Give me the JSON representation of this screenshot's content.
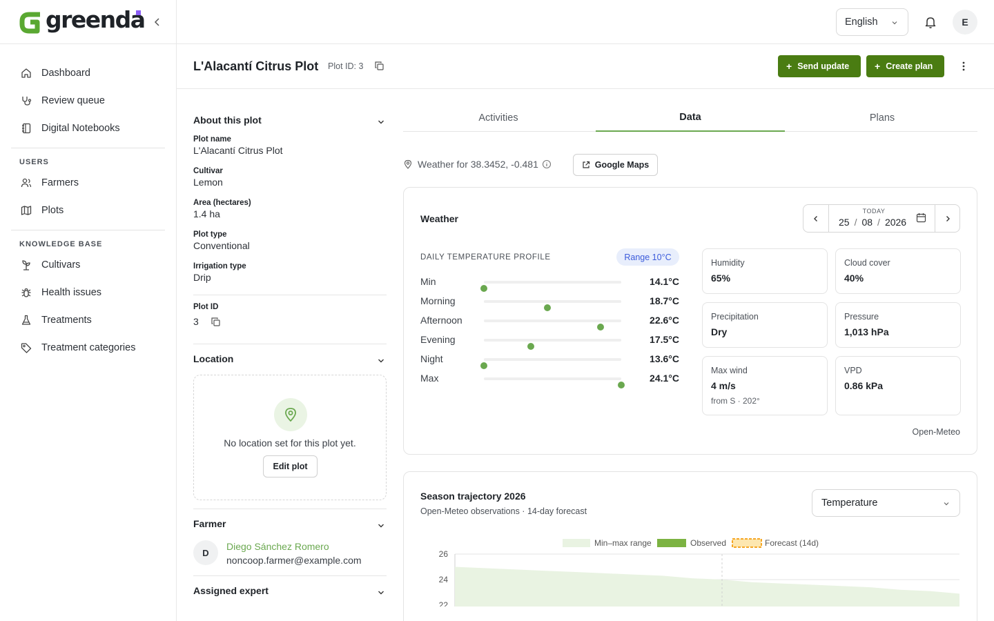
{
  "app": {
    "brand": "greenda",
    "brand_accent": "#8b5cf6",
    "primary": "#4a7c12",
    "accent": "#6aa84f"
  },
  "sidebar": {
    "main_items": [
      {
        "label": "Dashboard",
        "icon": "home-icon"
      },
      {
        "label": "Review queue",
        "icon": "stethoscope-icon"
      },
      {
        "label": "Digital Notebooks",
        "icon": "notebook-icon"
      }
    ],
    "users_heading": "USERS",
    "users_items": [
      {
        "label": "Farmers",
        "icon": "users-icon"
      },
      {
        "label": "Plots",
        "icon": "map-icon"
      }
    ],
    "kb_heading": "KNOWLEDGE BASE",
    "kb_items": [
      {
        "label": "Cultivars",
        "icon": "sprout-icon"
      },
      {
        "label": "Health issues",
        "icon": "bug-icon"
      },
      {
        "label": "Treatments",
        "icon": "flask-icon"
      },
      {
        "label": "Treatment categories",
        "icon": "tag-icon"
      }
    ]
  },
  "topbar": {
    "language": "English",
    "user_initial": "E"
  },
  "header": {
    "title": "L'Alacantí Citrus Plot",
    "plot_id_label": "Plot ID: 3",
    "send_update": "Send update",
    "create_plan": "Create plan"
  },
  "about": {
    "heading": "About this plot",
    "fields": [
      {
        "label": "Plot name",
        "value": "L'Alacantí Citrus Plot"
      },
      {
        "label": "Cultivar",
        "value": "Lemon"
      },
      {
        "label": "Area (hectares)",
        "value": "1.4 ha"
      },
      {
        "label": "Plot type",
        "value": "Conventional"
      },
      {
        "label": "Irrigation type",
        "value": "Drip"
      }
    ],
    "plot_id_label": "Plot ID",
    "plot_id_value": "3"
  },
  "location": {
    "heading": "Location",
    "empty_message": "No location set for this plot yet.",
    "edit_button": "Edit plot"
  },
  "farmer": {
    "heading": "Farmer",
    "initial": "D",
    "name": "Diego Sánchez Romero",
    "email": "noncoop.farmer@example.com"
  },
  "expert": {
    "heading": "Assigned expert"
  },
  "tabs": [
    {
      "label": "Activities",
      "active": false
    },
    {
      "label": "Data",
      "active": true
    },
    {
      "label": "Plans",
      "active": false
    }
  ],
  "weather_for": "Weather for 38.3452, -0.481",
  "google_maps": "Google Maps",
  "weather": {
    "title": "Weather",
    "today_label": "TODAY",
    "date": {
      "day": "25",
      "month": "08",
      "year": "2026"
    },
    "profile_heading": "DAILY TEMPERATURE PROFILE",
    "range_pill": "Range 10°C",
    "profile_min": 14.1,
    "profile_max": 24.1,
    "profile": [
      {
        "label": "Min",
        "value": 14.1,
        "display": "14.1°C"
      },
      {
        "label": "Morning",
        "value": 18.7,
        "display": "18.7°C"
      },
      {
        "label": "Afternoon",
        "value": 22.6,
        "display": "22.6°C"
      },
      {
        "label": "Evening",
        "value": 17.5,
        "display": "17.5°C"
      },
      {
        "label": "Night",
        "value": 13.6,
        "display": "13.6°C"
      },
      {
        "label": "Max",
        "value": 24.1,
        "display": "24.1°C"
      }
    ],
    "metrics": [
      {
        "label": "Humidity",
        "value": "65%"
      },
      {
        "label": "Cloud cover",
        "value": "40%"
      },
      {
        "label": "Precipitation",
        "value": "Dry"
      },
      {
        "label": "Pressure",
        "value": "1,013 hPa"
      },
      {
        "label": "Max wind",
        "value": "4 m/s",
        "sub": "from S · 202°"
      },
      {
        "label": "VPD",
        "value": "0.86 kPa"
      }
    ],
    "source": "Open-Meteo"
  },
  "season": {
    "title": "Season trajectory 2026",
    "subtitle": "Open-Meteo observations · 14-day forecast",
    "metric": "Temperature"
  },
  "chart_data": {
    "type": "area",
    "legend": [
      "Min–max range",
      "Observed",
      "Forecast (14d)"
    ],
    "legend_position": "top-center",
    "series_colors": {
      "range": "#e9f3e2",
      "observed": "#7cb342",
      "forecast": "#f5a623"
    },
    "y_ticks": [
      26,
      24,
      22
    ],
    "ylim": [
      22,
      26
    ],
    "grid": true,
    "upper_bound": [
      25.0,
      24.9,
      24.8,
      24.7,
      24.6,
      24.5,
      24.4,
      24.3,
      24.1,
      24.0,
      23.8,
      23.7,
      23.6,
      23.5,
      23.4,
      23.2,
      23.1,
      22.9
    ],
    "forecast_start_index": 9
  }
}
